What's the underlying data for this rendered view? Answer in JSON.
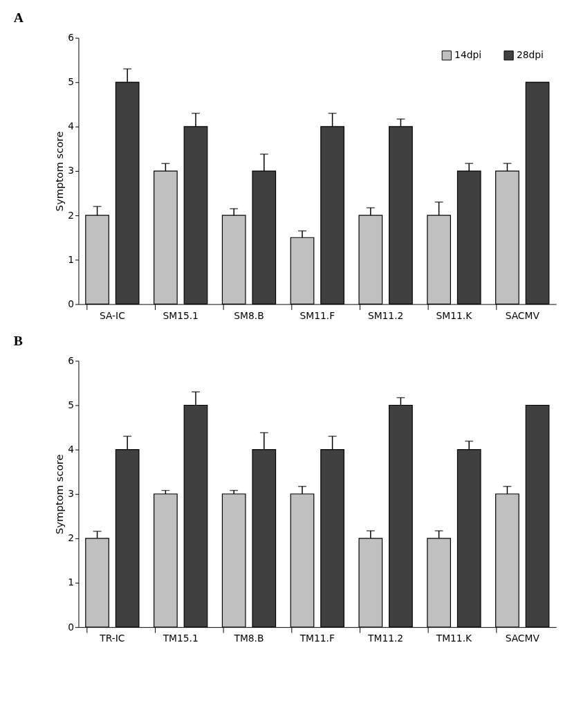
{
  "chart_data": [
    {
      "type": "bar",
      "title": "A",
      "ylabel": "Symptom score",
      "categories": [
        "SA-IC",
        "SM15.1",
        "SM8.B",
        "SM11.F",
        "SM11.2",
        "SM11.K",
        "SACMV"
      ],
      "ylim": [
        0,
        6
      ],
      "yticks": [
        0,
        1,
        2,
        3,
        4,
        5,
        6
      ],
      "grid": false,
      "legend": "top right",
      "series": [
        {
          "name": "14dpi",
          "color": "#c0c0c0",
          "values": [
            2,
            3,
            2,
            1.5,
            2,
            2,
            3
          ],
          "errors": [
            [
              2,
              2.2
            ],
            [
              3,
              3.17
            ],
            [
              2,
              2.15
            ],
            [
              1.5,
              1.65
            ],
            [
              2,
              2.17
            ],
            [
              2,
              2.3
            ],
            [
              3,
              3.17
            ]
          ]
        },
        {
          "name": "28dpi",
          "color": "#404040",
          "values": [
            5,
            4,
            3,
            4,
            4,
            3,
            5
          ],
          "errors": [
            [
              5,
              5.3
            ],
            [
              4,
              4.3
            ],
            [
              3,
              3.38
            ],
            [
              4,
              4.3
            ],
            [
              4,
              4.17
            ],
            [
              3,
              3.17
            ],
            null
          ]
        }
      ]
    },
    {
      "type": "bar",
      "title": "B",
      "ylabel": "Symptom score",
      "categories": [
        "TR-IC",
        "TM15.1",
        "TM8.B",
        "TM11.F",
        "TM11.2",
        "TM11.K",
        "SACMV"
      ],
      "ylim": [
        0,
        6
      ],
      "yticks": [
        0,
        1,
        2,
        3,
        4,
        5,
        6
      ],
      "grid": false,
      "legend": false,
      "series": [
        {
          "color": "#c0c0c0",
          "values": [
            2,
            3,
            3,
            3,
            2,
            2,
            3
          ],
          "errors": [
            [
              2,
              2.16
            ],
            [
              3,
              3.08
            ],
            [
              3,
              3.08
            ],
            [
              3,
              3.17
            ],
            [
              2,
              2.17
            ],
            [
              2,
              2.17
            ],
            [
              3,
              3.17
            ]
          ]
        },
        {
          "color": "#404040",
          "values": [
            4,
            5,
            4,
            4,
            5,
            4,
            5
          ],
          "errors": [
            [
              4,
              4.3
            ],
            [
              5,
              5.3
            ],
            [
              4,
              4.38
            ],
            [
              4,
              4.3
            ],
            [
              5,
              5.17
            ],
            [
              4,
              4.19
            ],
            null
          ]
        }
      ]
    }
  ]
}
